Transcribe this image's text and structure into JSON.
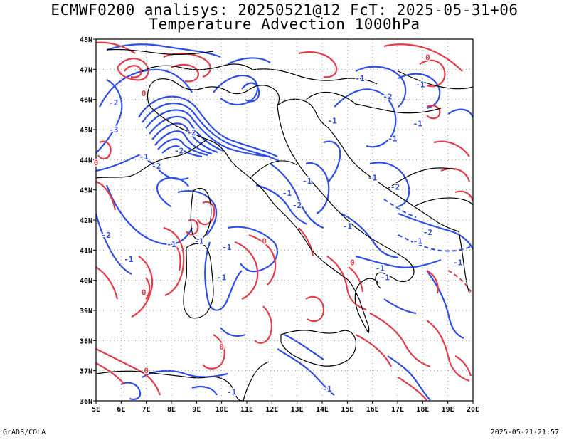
{
  "title": {
    "line1": "ECMWF0200 analisys: 20250521@12 FcT: 2025-05-31+06",
    "line2": "Temperature Advection 1000hPa"
  },
  "footer": {
    "left": "GrADS/COLA",
    "right": "2025-05-21-21:57"
  },
  "map": {
    "lon_range": [
      5,
      20
    ],
    "lat_range": [
      36,
      48
    ],
    "lon_ticks": [
      "5E",
      "6E",
      "7E",
      "8E",
      "9E",
      "10E",
      "11E",
      "12E",
      "13E",
      "14E",
      "15E",
      "16E",
      "17E",
      "18E",
      "19E",
      "20E"
    ],
    "lat_ticks": [
      "36N",
      "37N",
      "38N",
      "39N",
      "40N",
      "41N",
      "42N",
      "43N",
      "44N",
      "45N",
      "46N",
      "47N",
      "48N"
    ],
    "grid": "dotted",
    "colors": {
      "positive_contour": "#e23c4a",
      "negative_contour": "#2e4fe6",
      "coastline": "#000000",
      "grid": "#a0a0a0"
    },
    "contour_labels": [
      {
        "text": "-1",
        "lon": 13.4,
        "lat": 43.3,
        "color": "negative"
      },
      {
        "text": "-1",
        "lon": 12.6,
        "lat": 42.9,
        "color": "negative"
      },
      {
        "text": "-1",
        "lon": 10.2,
        "lat": 41.1,
        "color": "negative"
      },
      {
        "text": "-1",
        "lon": 10.0,
        "lat": 40.1,
        "color": "negative"
      },
      {
        "text": "-1",
        "lon": 6.3,
        "lat": 40.7,
        "color": "negative"
      },
      {
        "text": "-1",
        "lon": 8.0,
        "lat": 41.2,
        "color": "negative"
      },
      {
        "text": "-2",
        "lon": 5.4,
        "lat": 41.5,
        "color": "negative"
      },
      {
        "text": "-1",
        "lon": 10.4,
        "lat": 36.3,
        "color": "negative"
      },
      {
        "text": "-1",
        "lon": 14.2,
        "lat": 36.4,
        "color": "negative"
      },
      {
        "text": "-1",
        "lon": 16.5,
        "lat": 40.1,
        "color": "negative"
      },
      {
        "text": "-1",
        "lon": 16.3,
        "lat": 40.4,
        "color": "negative"
      },
      {
        "text": "-1",
        "lon": 17.8,
        "lat": 41.3,
        "color": "negative"
      },
      {
        "text": "-2",
        "lon": 18.2,
        "lat": 41.6,
        "color": "negative"
      },
      {
        "text": "-1",
        "lon": 19.4,
        "lat": 40.6,
        "color": "negative"
      },
      {
        "text": "-1",
        "lon": 16.8,
        "lat": 44.7,
        "color": "negative"
      },
      {
        "text": "-1",
        "lon": 17.8,
        "lat": 45.2,
        "color": "negative"
      },
      {
        "text": "-2",
        "lon": 16.6,
        "lat": 46.1,
        "color": "negative"
      },
      {
        "text": "-1",
        "lon": 17.9,
        "lat": 46.5,
        "color": "negative"
      },
      {
        "text": "-1",
        "lon": 15.5,
        "lat": 46.7,
        "color": "negative"
      },
      {
        "text": "-1",
        "lon": 14.4,
        "lat": 45.3,
        "color": "negative"
      },
      {
        "text": "-2",
        "lon": 16.9,
        "lat": 43.1,
        "color": "negative"
      },
      {
        "text": "-1",
        "lon": 16.0,
        "lat": 43.4,
        "color": "negative"
      },
      {
        "text": "-1",
        "lon": 15.0,
        "lat": 41.8,
        "color": "negative"
      },
      {
        "text": "-2",
        "lon": 7.4,
        "lat": 43.8,
        "color": "negative"
      },
      {
        "text": "-2",
        "lon": 8.3,
        "lat": 44.3,
        "color": "negative"
      },
      {
        "text": "-3",
        "lon": 5.7,
        "lat": 45.0,
        "color": "negative"
      },
      {
        "text": "-2",
        "lon": 5.7,
        "lat": 45.9,
        "color": "negative"
      },
      {
        "text": "-2",
        "lon": 8.8,
        "lat": 44.9,
        "color": "negative"
      },
      {
        "text": "-1",
        "lon": 6.9,
        "lat": 44.1,
        "color": "negative"
      },
      {
        "text": "-2",
        "lon": 13.0,
        "lat": 42.5,
        "color": "negative"
      },
      {
        "text": "-1",
        "lon": 9.1,
        "lat": 41.3,
        "color": "negative"
      },
      {
        "text": "0",
        "lon": 6.9,
        "lat": 46.2,
        "color": "positive"
      },
      {
        "text": "0",
        "lon": 11.7,
        "lat": 41.3,
        "color": "positive"
      },
      {
        "text": "0",
        "lon": 6.9,
        "lat": 39.6,
        "color": "positive"
      },
      {
        "text": "0",
        "lon": 10.0,
        "lat": 37.8,
        "color": "positive"
      },
      {
        "text": "0",
        "lon": 7.0,
        "lat": 37.0,
        "color": "positive"
      },
      {
        "text": "0",
        "lon": 15.2,
        "lat": 40.6,
        "color": "positive"
      },
      {
        "text": "0",
        "lon": 5.0,
        "lat": 43.9,
        "color": "positive"
      },
      {
        "text": "0",
        "lon": 18.2,
        "lat": 47.4,
        "color": "positive"
      }
    ]
  }
}
